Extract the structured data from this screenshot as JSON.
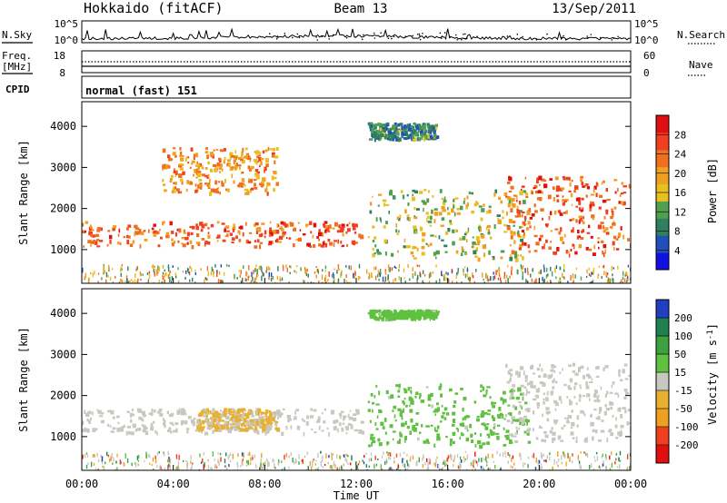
{
  "header": {
    "radar": "Hokkaido (fitACF)",
    "beam": "Beam 13",
    "date": "13/Sep/2011"
  },
  "status_panels": {
    "nsky": {
      "label": "N.Sky",
      "left_ticks": [
        "10^5",
        "10^0"
      ],
      "right_ticks": [
        "10^5",
        "10^0"
      ],
      "right_label": "N.Search"
    },
    "freq": {
      "label_line1": "Freq.",
      "label_line2": "[MHz]",
      "left_ticks": [
        "18",
        "8"
      ],
      "right_ticks": [
        "60",
        "0"
      ],
      "right_label": "Nave"
    },
    "cpid": {
      "label": "CPID",
      "program": "normal (fast) 151"
    }
  },
  "colorbars": {
    "power": {
      "title": "Power [dB]",
      "ticks": [
        "28",
        "24",
        "20",
        "16",
        "12",
        "8",
        "4"
      ]
    },
    "velocity": {
      "title": "Velocity [m s",
      "title_sup": "-1",
      "title_end": "]",
      "ticks": [
        "200",
        "100",
        "50",
        "15",
        "-15",
        "-50",
        "-100",
        "-200"
      ]
    }
  },
  "axes": {
    "ylabel": "Slant Range [km]",
    "xlabel": "Time UT",
    "yticks": [
      "1000",
      "2000",
      "3000",
      "4000"
    ],
    "xticks": [
      "00:00",
      "04:00",
      "08:00",
      "12:00",
      "16:00",
      "20:00",
      "00:00"
    ]
  },
  "colors": {
    "power_scale": [
      "#1010e0",
      "#2050b8",
      "#308060",
      "#50a050",
      "#e8c020",
      "#f0a020",
      "#f07020",
      "#f04020",
      "#e01010"
    ],
    "velocity_scale": [
      "#e01010",
      "#f04020",
      "#f0a020",
      "#e8b030",
      "#c8c8c0",
      "#60c040",
      "#40a040",
      "#208050",
      "#2040c0"
    ],
    "ground_scatter": "#c8c8c0"
  },
  "chart_data": [
    {
      "type": "heatmap",
      "title": "Power [dB]",
      "xlabel": "Time UT",
      "ylabel": "Slant Range [km]",
      "xlim": [
        "00:00",
        "24:00"
      ],
      "ylim": [
        180,
        4600
      ],
      "zlim": [
        0,
        30
      ],
      "features": [
        {
          "t": [
            0.0,
            12.3
          ],
          "range_km": [
            1100,
            1700
          ],
          "power_db": 24
        },
        {
          "t": [
            3.5,
            8.5
          ],
          "range_km": [
            2400,
            3500
          ],
          "power_db": 20
        },
        {
          "t": [
            12.5,
            19.5
          ],
          "range_km": [
            800,
            2500
          ],
          "power_db": 14
        },
        {
          "t": [
            18.5,
            24.0
          ],
          "range_km": [
            900,
            2800
          ],
          "power_db": 24
        },
        {
          "t": [
            12.5,
            15.5
          ],
          "range_km": [
            3700,
            4100
          ],
          "power_db": 8
        }
      ]
    },
    {
      "type": "heatmap",
      "title": "Velocity [m s-1]",
      "xlabel": "Time UT",
      "ylabel": "Slant Range [km]",
      "xlim": [
        "00:00",
        "24:00"
      ],
      "ylim": [
        180,
        4600
      ],
      "zlim": [
        -250,
        250
      ],
      "features": [
        {
          "t": [
            0.0,
            12.3
          ],
          "range_km": [
            1100,
            1700
          ],
          "velocity": 0,
          "ground_scatter": true
        },
        {
          "t": [
            5.0,
            8.5
          ],
          "range_km": [
            1200,
            1700
          ],
          "velocity": -40
        },
        {
          "t": [
            12.5,
            19.5
          ],
          "range_km": [
            800,
            2300
          ],
          "velocity": 60
        },
        {
          "t": [
            18.5,
            24.0
          ],
          "range_km": [
            900,
            2800
          ],
          "velocity": 0,
          "ground_scatter": true
        },
        {
          "t": [
            12.5,
            15.5
          ],
          "range_km": [
            3900,
            4100
          ],
          "velocity": 60
        }
      ]
    }
  ]
}
